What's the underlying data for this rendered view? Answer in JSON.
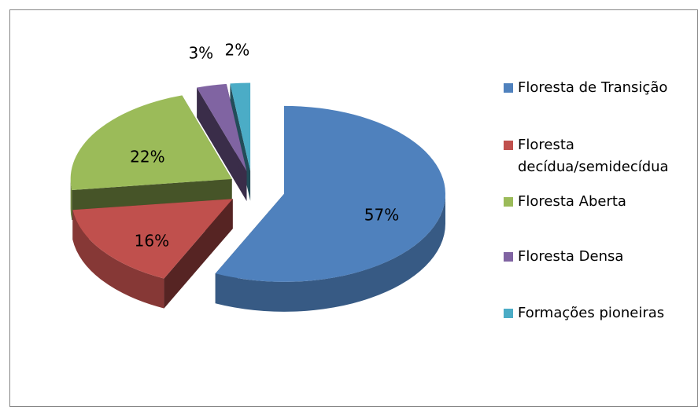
{
  "chart_data": {
    "type": "pie3d",
    "categories": [
      "Floresta de Transição",
      "Floresta decídua/semidecídua",
      "Floresta Aberta",
      "Floresta Densa",
      "Formações pioneiras"
    ],
    "values": [
      57,
      16,
      22,
      3,
      2
    ],
    "value_labels": [
      "57%",
      "16%",
      "22%",
      "3%",
      "2%"
    ],
    "colors": [
      "#4f81bd",
      "#c0504d",
      "#9bbb59",
      "#8064a2",
      "#4bacc6"
    ],
    "legend": "right"
  }
}
